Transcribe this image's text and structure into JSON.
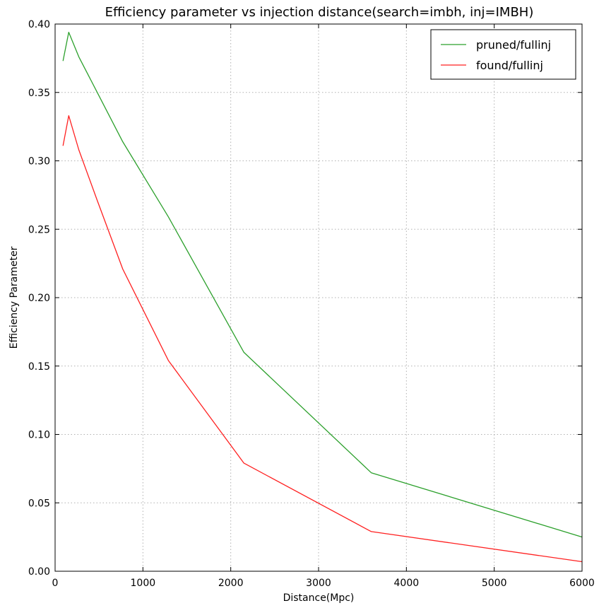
{
  "chart_data": {
    "type": "line",
    "title": "Efficiency parameter vs injection distance(search=imbh, inj=IMBH)",
    "xlabel": "Distance(Mpc)",
    "ylabel": "Efficiency Parameter",
    "xlim": [
      0,
      6000
    ],
    "ylim": [
      0.0,
      0.4
    ],
    "xticks": [
      0,
      1000,
      2000,
      3000,
      4000,
      5000,
      6000
    ],
    "xtick_labels": [
      "0",
      "1000",
      "2000",
      "3000",
      "4000",
      "5000",
      "6000"
    ],
    "yticks": [
      0.0,
      0.05,
      0.1,
      0.15,
      0.2,
      0.25,
      0.3,
      0.35,
      0.4
    ],
    "ytick_labels": [
      "0.00",
      "0.05",
      "0.10",
      "0.15",
      "0.20",
      "0.25",
      "0.30",
      "0.35",
      "0.40"
    ],
    "grid": true,
    "legend_position": "top-right",
    "series": [
      {
        "name": "pruned/fullinj",
        "color": "#2ca02c",
        "x": [
          90,
          155,
          270,
          480,
          770,
          1290,
          2150,
          3600,
          6000
        ],
        "y": [
          0.373,
          0.394,
          0.376,
          0.35,
          0.314,
          0.259,
          0.16,
          0.072,
          0.025
        ]
      },
      {
        "name": "found/fullinj",
        "color": "#ff2020",
        "x": [
          90,
          155,
          270,
          480,
          770,
          1290,
          2150,
          3600,
          6000
        ],
        "y": [
          0.311,
          0.333,
          0.308,
          0.271,
          0.221,
          0.154,
          0.079,
          0.029,
          0.007
        ]
      }
    ]
  }
}
